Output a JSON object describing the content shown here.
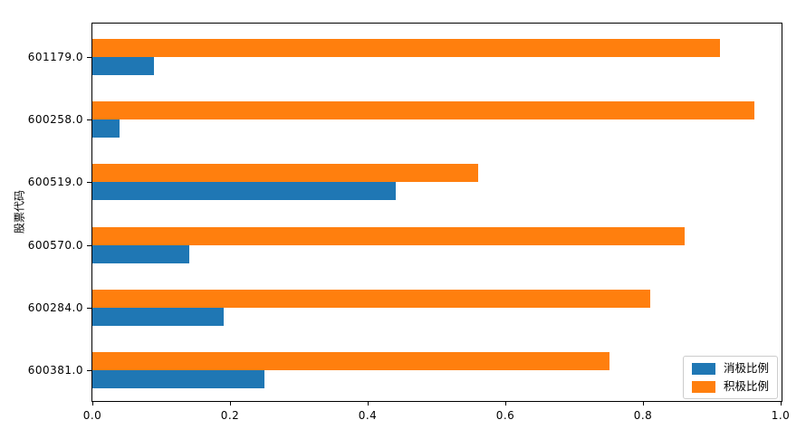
{
  "chart_data": {
    "type": "bar",
    "orientation": "horizontal",
    "title": "",
    "xlabel": "",
    "ylabel": "股票代码",
    "categories": [
      "601179.0",
      "600258.0",
      "600519.0",
      "600570.0",
      "600284.0",
      "600381.0"
    ],
    "series": [
      {
        "name": "消极比例",
        "color": "#1f77b4",
        "values": [
          0.09,
          0.04,
          0.44,
          0.14,
          0.19,
          0.25
        ]
      },
      {
        "name": "积极比例",
        "color": "#ff7f0e",
        "values": [
          0.91,
          0.96,
          0.56,
          0.86,
          0.81,
          0.75
        ]
      }
    ],
    "xlim": [
      0.0,
      1.0
    ],
    "xticks": [
      0.0,
      0.2,
      0.4,
      0.6,
      0.8,
      1.0
    ],
    "xtick_labels": [
      "0.0",
      "0.2",
      "0.4",
      "0.6",
      "0.8",
      "1.0"
    ],
    "legend_position": "lower right",
    "grid": false,
    "spine_color": "#000000",
    "background_color": "#ffffff"
  }
}
